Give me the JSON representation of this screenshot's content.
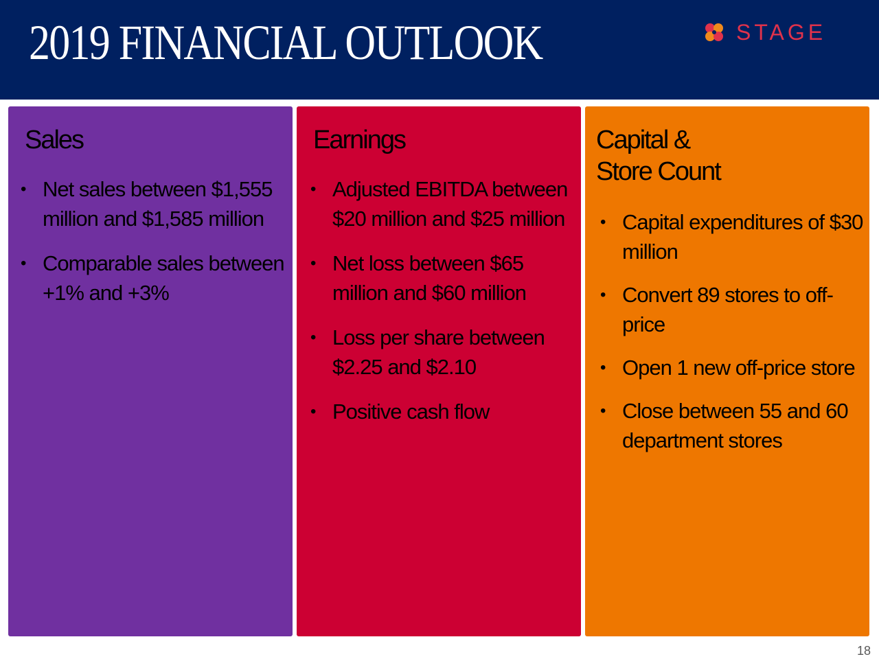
{
  "header": {
    "title": "2019 FINANCIAL OUTLOOK",
    "logo_text": "STAGE",
    "logo_color": "#e0324b",
    "background_color": "#002060"
  },
  "panels": [
    {
      "heading": "Sales",
      "color": "#7030a0",
      "bullets": [
        "Net sales between $1,555 million and $1,585 million",
        "Comparable sales between +1% and +3%"
      ]
    },
    {
      "heading": "Earnings",
      "color": "#cc0033",
      "bullets": [
        "Adjusted EBITDA between $20 million and $25 million",
        "Net loss between $65 million and $60 million",
        "Loss per share between $2.25 and $2.10",
        "Positive cash flow"
      ]
    },
    {
      "heading_line1": "Capital &",
      "heading_line2": "Store Count",
      "color": "#ee7700",
      "bullets": [
        "Capital expenditures of $30 million",
        "Convert 89 stores to off-price",
        "Open 1 new off-price store",
        "Close between 55 and 60 department stores"
      ]
    }
  ],
  "page_number": "18",
  "bullet_glyph": "•"
}
